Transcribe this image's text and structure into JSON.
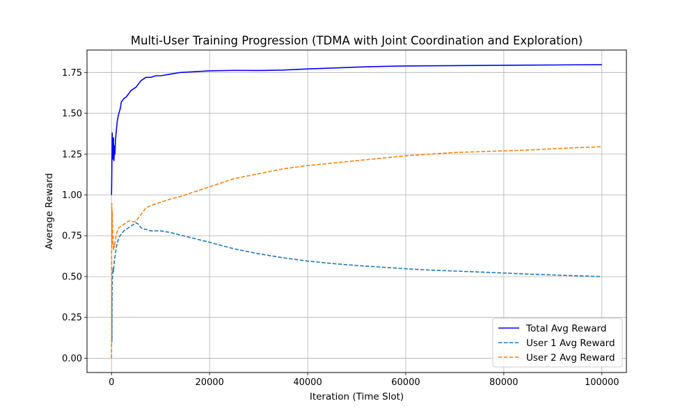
{
  "chart_data": {
    "type": "line",
    "title": "Multi-User Training Progression (TDMA with Joint Coordination and Exploration)",
    "xlabel": "Iteration (Time Slot)",
    "ylabel": "Average Reward",
    "xlim": [
      -5000,
      105000
    ],
    "ylim": [
      -0.0875,
      1.8875
    ],
    "xticks": [
      0,
      20000,
      40000,
      60000,
      80000,
      100000
    ],
    "yticks": [
      0.0,
      0.25,
      0.5,
      0.75,
      1.0,
      1.25,
      1.5,
      1.75
    ],
    "xtick_labels": [
      "0",
      "20000",
      "40000",
      "60000",
      "80000",
      "100000"
    ],
    "ytick_labels": [
      "0.00",
      "0.25",
      "0.50",
      "0.75",
      "1.00",
      "1.25",
      "1.50",
      "1.75"
    ],
    "grid": true,
    "legend_position": "lower-right",
    "series": [
      {
        "name": "Total Avg Reward",
        "color": "#0000ff",
        "style": "solid",
        "x": [
          0,
          50,
          100,
          150,
          200,
          300,
          400,
          500,
          600,
          700,
          800,
          1000,
          1200,
          1500,
          1800,
          2000,
          2500,
          3000,
          3500,
          4000,
          5000,
          6000,
          7000,
          8000,
          9000,
          10000,
          12000,
          14000,
          16000,
          18000,
          20000,
          25000,
          30000,
          35000,
          40000,
          45000,
          50000,
          55000,
          60000,
          65000,
          70000,
          75000,
          80000,
          85000,
          90000,
          95000,
          100000
        ],
        "y": [
          1.0,
          1.1,
          1.25,
          1.38,
          1.3,
          1.22,
          1.35,
          1.21,
          1.3,
          1.25,
          1.33,
          1.4,
          1.46,
          1.5,
          1.53,
          1.57,
          1.59,
          1.6,
          1.62,
          1.64,
          1.66,
          1.7,
          1.72,
          1.72,
          1.73,
          1.73,
          1.74,
          1.75,
          1.753,
          1.757,
          1.76,
          1.763,
          1.762,
          1.765,
          1.772,
          1.777,
          1.783,
          1.787,
          1.79,
          1.791,
          1.792,
          1.793,
          1.794,
          1.795,
          1.796,
          1.797,
          1.798
        ]
      },
      {
        "name": "User 1 Avg Reward",
        "color": "#1f77b4",
        "style": "dashed",
        "x": [
          0,
          20,
          50,
          80,
          100,
          150,
          200,
          300,
          400,
          500,
          600,
          800,
          1000,
          1200,
          1500,
          2000,
          2500,
          3000,
          3500,
          4000,
          4500,
          5000,
          5500,
          6000,
          6500,
          7000,
          8000,
          9000,
          10000,
          12000,
          14000,
          16000,
          18000,
          20000,
          25000,
          30000,
          35000,
          40000,
          45000,
          50000,
          55000,
          60000,
          65000,
          70000,
          75000,
          80000,
          85000,
          90000,
          95000,
          100000
        ],
        "y": [
          0.0,
          0.2,
          0.38,
          0.1,
          0.3,
          0.45,
          0.5,
          0.55,
          0.53,
          0.57,
          0.6,
          0.64,
          0.68,
          0.71,
          0.74,
          0.76,
          0.78,
          0.79,
          0.8,
          0.81,
          0.82,
          0.83,
          0.82,
          0.8,
          0.79,
          0.79,
          0.78,
          0.78,
          0.78,
          0.77,
          0.755,
          0.74,
          0.725,
          0.71,
          0.67,
          0.64,
          0.615,
          0.595,
          0.58,
          0.568,
          0.558,
          0.548,
          0.54,
          0.534,
          0.528,
          0.522,
          0.515,
          0.51,
          0.505,
          0.5
        ]
      },
      {
        "name": "User 2 Avg Reward",
        "color": "#ff7f0e",
        "style": "dashed",
        "x": [
          0,
          20,
          50,
          80,
          100,
          150,
          200,
          300,
          400,
          500,
          600,
          800,
          1000,
          1200,
          1500,
          2000,
          2500,
          3000,
          3500,
          4000,
          4500,
          5000,
          5500,
          6000,
          6500,
          7000,
          8000,
          9000,
          10000,
          12000,
          14000,
          16000,
          18000,
          20000,
          25000,
          30000,
          35000,
          40000,
          45000,
          50000,
          55000,
          60000,
          65000,
          70000,
          75000,
          80000,
          85000,
          90000,
          95000,
          100000
        ],
        "y": [
          0.0,
          0.5,
          0.95,
          0.7,
          0.85,
          0.9,
          0.8,
          0.72,
          0.66,
          0.7,
          0.68,
          0.73,
          0.76,
          0.78,
          0.8,
          0.81,
          0.82,
          0.83,
          0.84,
          0.84,
          0.835,
          0.84,
          0.86,
          0.88,
          0.9,
          0.92,
          0.935,
          0.945,
          0.955,
          0.975,
          0.99,
          1.01,
          1.03,
          1.05,
          1.1,
          1.13,
          1.16,
          1.18,
          1.195,
          1.21,
          1.225,
          1.24,
          1.25,
          1.26,
          1.265,
          1.27,
          1.275,
          1.283,
          1.29,
          1.295
        ]
      }
    ]
  }
}
